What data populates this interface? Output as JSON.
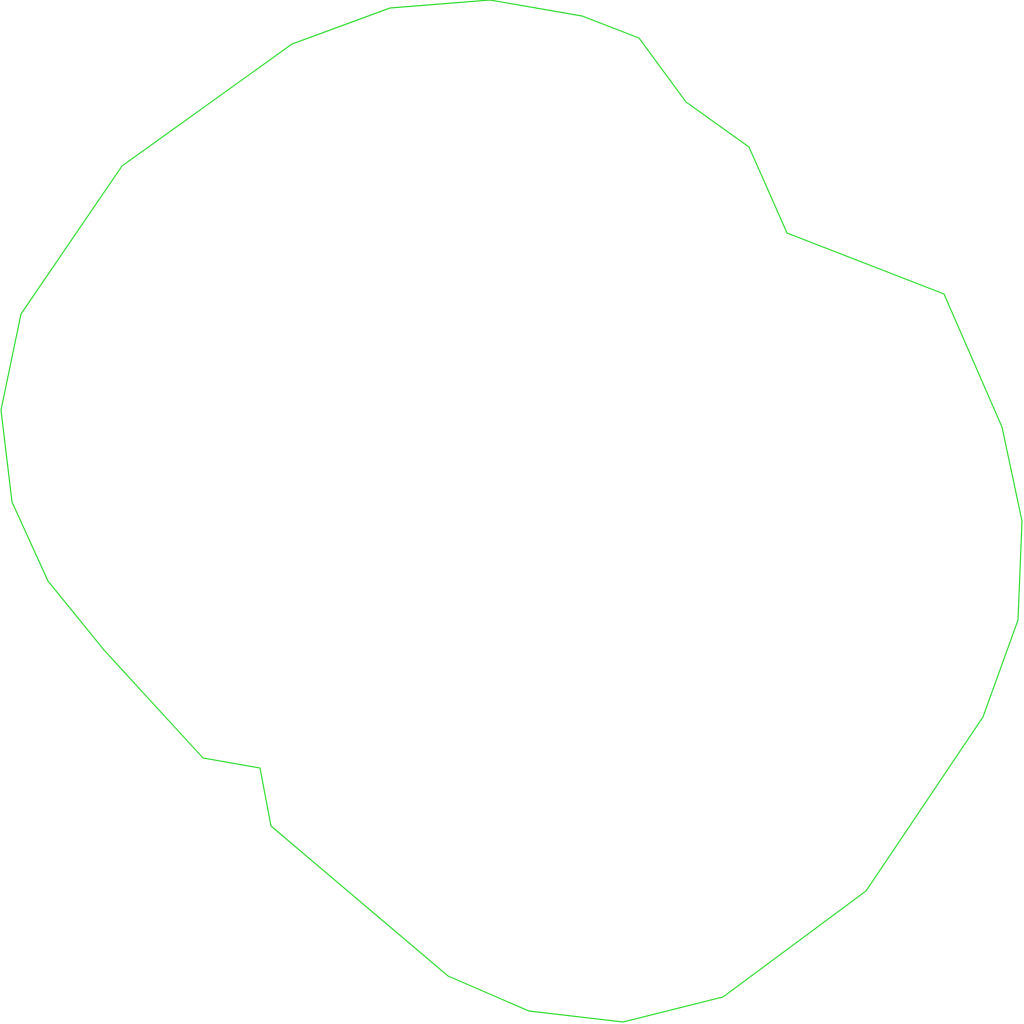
{
  "shape": {
    "kind": "closed-outline",
    "stroke_color": "#33dd33",
    "fill_color": "none",
    "background_color": "#ffffff"
  }
}
